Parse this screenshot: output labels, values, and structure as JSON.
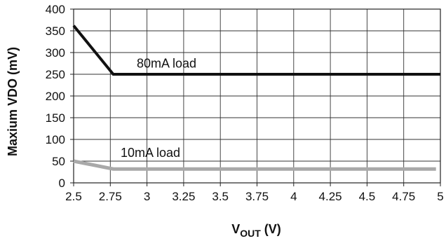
{
  "chart_data": {
    "type": "line",
    "title": "",
    "xlabel": {
      "main": "V",
      "sub": "OUT",
      "unit": " (V)"
    },
    "ylabel": "Maxium VDO (mV)",
    "xlim": [
      2.5,
      5
    ],
    "ylim": [
      0,
      400
    ],
    "x_ticks": [
      "2.5",
      "2.75",
      "3",
      "3.25",
      "3.5",
      "3.75",
      "4",
      "4.25",
      "4.5",
      "4.75",
      "5"
    ],
    "y_ticks": [
      "0",
      "50",
      "100",
      "150",
      "200",
      "250",
      "300",
      "350",
      "400"
    ],
    "grid": true,
    "legend": "none",
    "series": [
      {
        "name": "80mA load",
        "color": "#111111",
        "points": [
          [
            2.5,
            362
          ],
          [
            2.77,
            250
          ],
          [
            5.0,
            250
          ]
        ]
      },
      {
        "name": "10mA load",
        "color": "#a9a9a9",
        "points": [
          [
            2.5,
            50
          ],
          [
            2.77,
            32
          ],
          [
            4.97,
            32
          ]
        ]
      }
    ],
    "annotations": [
      {
        "text": "80mA load",
        "x": 2.93,
        "y": 265
      },
      {
        "text": "10mA load",
        "x": 2.82,
        "y": 60
      }
    ]
  }
}
